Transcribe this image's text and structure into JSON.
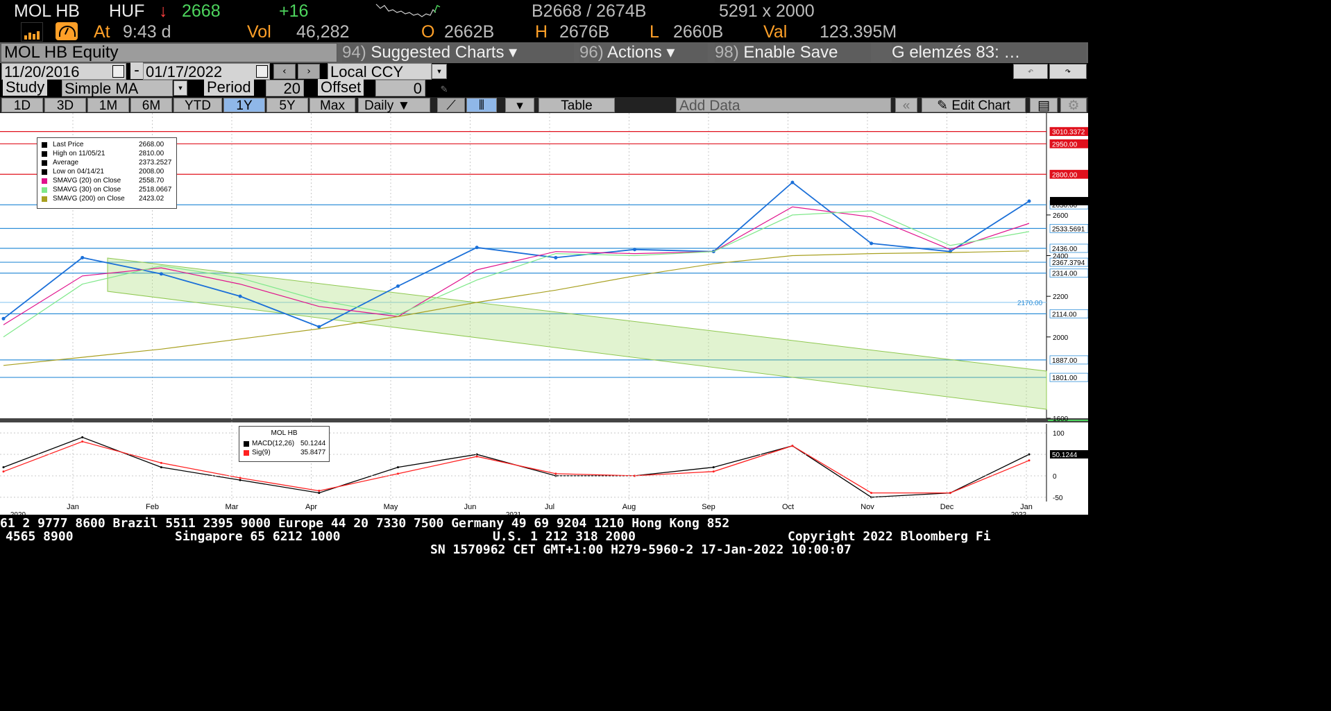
{
  "header": {
    "ticker": "MOL HB",
    "currency": "HUF",
    "arrow": "↓",
    "last": "2668",
    "change": "+16",
    "bid_ask": "B2668 / 2674B",
    "size": "5291 x 2000",
    "at_label": "At",
    "time": "9:43 d",
    "vol_label": "Vol",
    "vol": "46,282",
    "open_label": "O",
    "open": "2662B",
    "high_label": "H",
    "high": "2676B",
    "low_label": "L",
    "low": "2660B",
    "val_label": "Val",
    "val": "123.395M"
  },
  "menubar": {
    "security": "MOL HB Equity",
    "suggested_num": "94)",
    "suggested": "Suggested Charts ▾",
    "actions_num": "96)",
    "actions": "Actions ▾",
    "save_num": "98)",
    "save": "Enable Save",
    "title": "G elemzés 83: …"
  },
  "daterow": {
    "start": "11/20/2016",
    "dash": "-",
    "end": "01/17/2022",
    "ccy": "Local CCY"
  },
  "studyrow": {
    "study_label": "Study",
    "study": "Simple MA",
    "period_label": "Period",
    "period": "20",
    "offset_label": "Offset",
    "offset": "0"
  },
  "toolbar": {
    "periods": [
      "1D",
      "3D",
      "1M",
      "6M",
      "YTD",
      "1Y",
      "5Y",
      "Max"
    ],
    "selected": "1Y",
    "frequency": "Daily ▼",
    "table": "Table",
    "add_data": "Add Data",
    "edit_chart": "Edit Chart"
  },
  "legend": {
    "rows": [
      {
        "label": "Last Price",
        "value": "2668.00",
        "color": "#000000"
      },
      {
        "label": "High on 11/05/21",
        "value": "2810.00",
        "color": "#000000"
      },
      {
        "label": "Average",
        "value": "2373.2527",
        "color": "#000000"
      },
      {
        "label": "Low on 04/14/21",
        "value": "2008.00",
        "color": "#000000"
      },
      {
        "label": "SMAVG (20)  on Close",
        "value": "2558.70",
        "color": "#e0128c"
      },
      {
        "label": "SMAVG (30)  on Close",
        "value": "2518.0667",
        "color": "#7fe88a"
      },
      {
        "label": "SMAVG (200)  on Close",
        "value": "2423.02",
        "color": "#a8a020"
      }
    ]
  },
  "macd_legend": {
    "title": "MOL HB",
    "rows": [
      {
        "label": "MACD(12,26)",
        "value": "50.1244",
        "color": "#000000"
      },
      {
        "label": "Sig(9)",
        "value": "35.8477",
        "color": "#ff2020"
      }
    ]
  },
  "price_tags": [
    {
      "text": "3010.3372",
      "kind": "red"
    },
    {
      "text": "2950.00",
      "kind": "red"
    },
    {
      "text": "2800.00",
      "kind": "red"
    },
    {
      "text": "2650.00",
      "kind": "blue"
    },
    {
      "text": "2533.5691",
      "kind": "blue"
    },
    {
      "text": "2436.00",
      "kind": "blue"
    },
    {
      "text": "2367.3794",
      "kind": "blue"
    },
    {
      "text": "2314.00",
      "kind": "blue"
    },
    {
      "text": "2170.00",
      "kind": "plain"
    },
    {
      "text": "2114.00",
      "kind": "blue"
    },
    {
      "text": "1887.00",
      "kind": "blue"
    },
    {
      "text": "1801.00",
      "kind": "blue"
    }
  ],
  "price_axis_ticks": [
    "2600",
    "2400",
    "2200",
    "2000",
    "1600"
  ],
  "macd_axis_ticks": [
    "100",
    "50",
    "0",
    "-50"
  ],
  "macd_tag": "50.1244",
  "x_months": [
    "Jan",
    "Feb",
    "Mar",
    "Apr",
    "May",
    "Jun",
    "Jul",
    "Aug",
    "Sep",
    "Oct",
    "Nov",
    "Dec",
    "Jan"
  ],
  "x_years": [
    "2020",
    "2021",
    "2022"
  ],
  "footer": {
    "line1": "61 2 9777 8600 Brazil 5511 2395 9000 Europe 44 20 7330 7500 Germany 49 69 9204 1210 Hong Kong 852",
    "line2a": "4565 8900",
    "line2b": "Singapore 65 6212 1000",
    "line2c": "U.S. 1 212 318 2000",
    "line2d": "Copyright 2022 Bloomberg Fi",
    "line3": "SN 1570962 CET  GMT+1:00 H279-5960-2 17-Jan-2022 10:00:07"
  },
  "chart_data": {
    "type": "line",
    "title": "MOL HB Equity",
    "x": [
      "Dec-2020",
      "Jan-2021",
      "Feb-2021",
      "Mar-2021",
      "Apr-2021",
      "May-2021",
      "Jun-2021",
      "Jul-2021",
      "Aug-2021",
      "Sep-2021",
      "Oct-2021",
      "Nov-2021",
      "Dec-2021",
      "Jan-2022"
    ],
    "series": [
      {
        "name": "Last Price",
        "values": [
          2090,
          2390,
          2310,
          2200,
          2050,
          2250,
          2440,
          2390,
          2430,
          2420,
          2760,
          2460,
          2420,
          2668
        ]
      },
      {
        "name": "SMAVG (20)  on Close",
        "values": [
          2060,
          2300,
          2340,
          2260,
          2150,
          2100,
          2330,
          2420,
          2410,
          2420,
          2640,
          2590,
          2430,
          2558.7
        ]
      },
      {
        "name": "SMAVG (30)  on Close",
        "values": [
          2000,
          2260,
          2350,
          2290,
          2180,
          2110,
          2280,
          2410,
          2400,
          2420,
          2600,
          2620,
          2450,
          2518.0667
        ]
      },
      {
        "name": "SMAVG (200)  on Close",
        "values": [
          1860,
          1900,
          1940,
          1990,
          2040,
          2100,
          2170,
          2230,
          2300,
          2360,
          2400,
          2410,
          2415,
          2423.02
        ]
      }
    ],
    "ylim": [
      1600,
      3050
    ],
    "macd": {
      "series": [
        {
          "name": "MACD(12,26)",
          "values": [
            20,
            90,
            20,
            -10,
            -40,
            20,
            50,
            0,
            0,
            20,
            70,
            -50,
            -40,
            50.1244
          ]
        },
        {
          "name": "Sig(9)",
          "values": [
            10,
            80,
            30,
            -5,
            -35,
            5,
            45,
            5,
            0,
            10,
            70,
            -40,
            -40,
            35.8477
          ]
        }
      ],
      "ylim": [
        -60,
        110
      ]
    }
  }
}
